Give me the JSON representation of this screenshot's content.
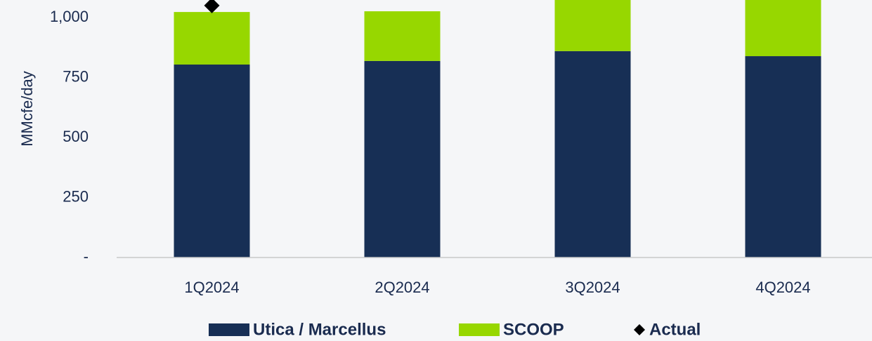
{
  "chart_data": {
    "type": "bar",
    "stacked": true,
    "ylabel": "MMcfe/day",
    "categories": [
      "1Q2024",
      "2Q2024",
      "3Q2024",
      "4Q2024"
    ],
    "series": [
      {
        "name": "Utica / Marcellus",
        "color": "#172f55",
        "values": [
          804,
          819,
          860,
          839
        ]
      },
      {
        "name": "SCOOP",
        "color": "#97d700",
        "values": [
          219,
          207,
          240,
          250
        ]
      },
      {
        "name": "Actual",
        "color": "#000000",
        "type": "scatter",
        "marker": "diamond",
        "values": [
          1050,
          null,
          null,
          null
        ]
      }
    ],
    "ylim": [
      0,
      1073
    ],
    "yticks": [
      {
        "value": 0,
        "label": "-"
      },
      250,
      500,
      750,
      {
        "value": 1000,
        "label": "1,000"
      }
    ],
    "grid": false,
    "legend": "bottom"
  }
}
